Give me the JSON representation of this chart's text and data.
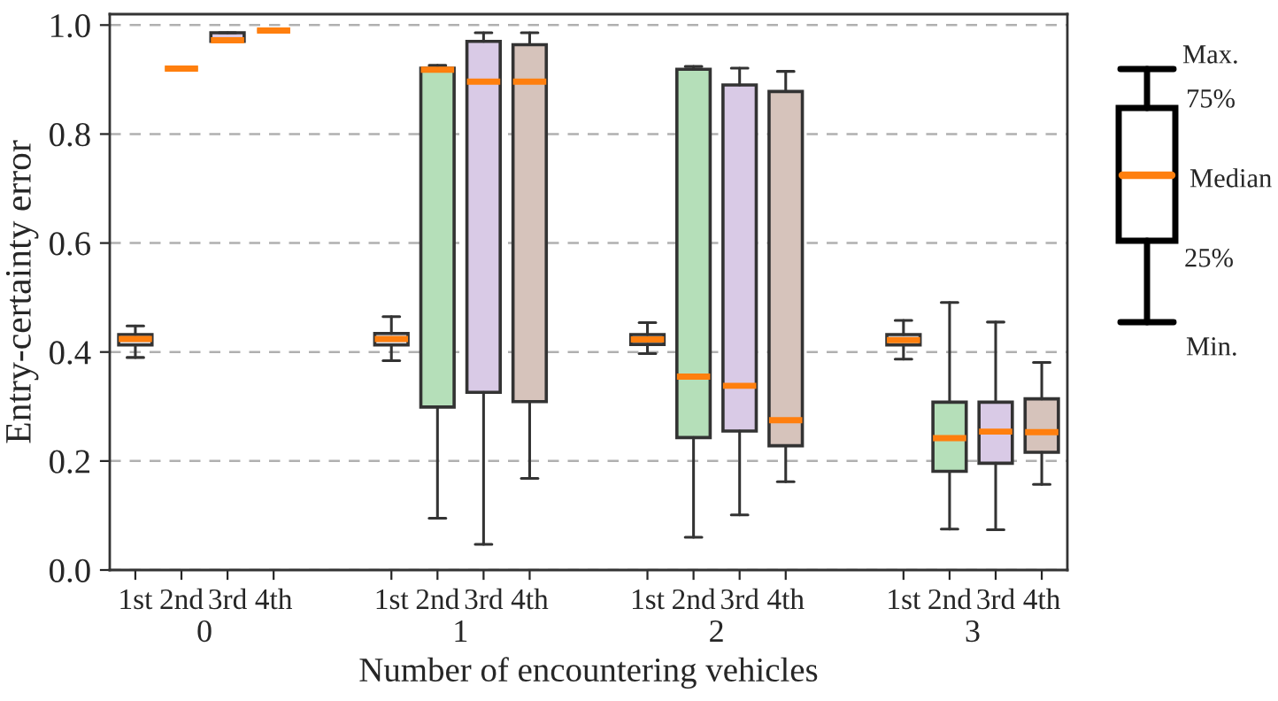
{
  "chart_data": {
    "type": "box",
    "xlabel": "Number of encountering vehicles",
    "ylabel": "Entry-certainty error",
    "categories": [
      "1st",
      "2nd",
      "3rd",
      "4th",
      "1st",
      "2nd",
      "3rd",
      "4th",
      "1st",
      "2nd",
      "3rd",
      "4th",
      "1st",
      "2nd",
      "3rd",
      "4th"
    ],
    "colors": [
      "#d3dde9",
      "#b5dfb9",
      "#d9cae6",
      "#d6c3bb",
      "#d3dde9",
      "#b5dfb9",
      "#d9cae6",
      "#d6c3bb",
      "#d3dde9",
      "#b5dfb9",
      "#d9cae6",
      "#d6c3bb",
      "#d3dde9",
      "#b5dfb9",
      "#d9cae6",
      "#d6c3bb"
    ],
    "ylim": [
      0.0,
      1.02
    ],
    "yticks": [
      {
        "value": 0,
        "label": "0.0"
      },
      0.2,
      0.4,
      0.6,
      0.8,
      {
        "value": 1,
        "label": "1.0"
      }
    ],
    "grid": "y",
    "boxes": [
      {
        "low": 0.39,
        "q1": 0.413,
        "median": 0.424,
        "q3": 0.432,
        "high": 0.448
      },
      {
        "low": 0.92,
        "q1": 0.92,
        "median": 0.92,
        "q3": 0.92,
        "high": 0.92
      },
      {
        "low": 0.97,
        "q1": 0.97,
        "median": 0.972,
        "q3": 0.986,
        "high": 0.986
      },
      {
        "low": 0.99,
        "q1": 0.99,
        "median": 0.99,
        "q3": 0.99,
        "high": 0.99
      },
      {
        "low": 0.384,
        "q1": 0.413,
        "median": 0.424,
        "q3": 0.434,
        "high": 0.465
      },
      {
        "low": 0.095,
        "q1": 0.299,
        "median": 0.918,
        "q3": 0.921,
        "high": 0.926
      },
      {
        "low": 0.047,
        "q1": 0.326,
        "median": 0.896,
        "q3": 0.97,
        "high": 0.986
      },
      {
        "low": 0.168,
        "q1": 0.309,
        "median": 0.896,
        "q3": 0.964,
        "high": 0.986
      },
      {
        "low": 0.397,
        "q1": 0.414,
        "median": 0.423,
        "q3": 0.432,
        "high": 0.454
      },
      {
        "low": 0.06,
        "q1": 0.243,
        "median": 0.355,
        "q3": 0.919,
        "high": 0.924
      },
      {
        "low": 0.101,
        "q1": 0.255,
        "median": 0.338,
        "q3": 0.89,
        "high": 0.921
      },
      {
        "low": 0.162,
        "q1": 0.228,
        "median": 0.275,
        "q3": 0.878,
        "high": 0.915
      },
      {
        "low": 0.387,
        "q1": 0.413,
        "median": 0.422,
        "q3": 0.432,
        "high": 0.458
      },
      {
        "low": 0.075,
        "q1": 0.181,
        "median": 0.242,
        "q3": 0.308,
        "high": 0.491
      },
      {
        "low": 0.074,
        "q1": 0.196,
        "median": 0.254,
        "q3": 0.308,
        "high": 0.455
      },
      {
        "low": 0.157,
        "q1": 0.216,
        "median": 0.253,
        "q3": 0.314,
        "high": 0.381
      }
    ],
    "annotations": [
      "0",
      "1",
      "2",
      "3",
      "Max.",
      "75%",
      "Median",
      "25%",
      "Min."
    ]
  }
}
